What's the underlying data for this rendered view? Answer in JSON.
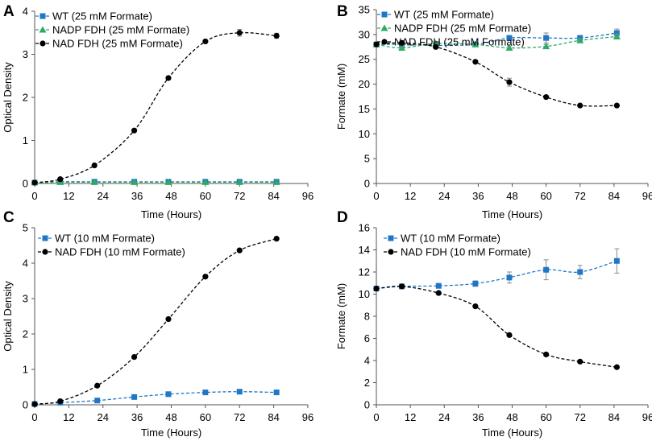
{
  "colors": {
    "wt": "#1f77c8",
    "nadp": "#2daa63",
    "nad": "#000000",
    "err": "#8a8a8a",
    "axis": "#555555"
  },
  "chart_data": [
    {
      "panel": "A",
      "type": "line",
      "xlabel": "Time (Hours)",
      "ylabel": "Optical Density",
      "xlim": [
        0,
        96
      ],
      "ylim": [
        0,
        4
      ],
      "xticks": [
        0,
        12,
        24,
        36,
        48,
        60,
        72,
        84,
        96
      ],
      "yticks": [
        0,
        1,
        2,
        3,
        4
      ],
      "legend": "top-left",
      "series": [
        {
          "name": "WT (25 mM Formate)",
          "marker": "square",
          "color": "#1f77c8",
          "x": [
            0,
            9,
            21,
            35,
            47,
            60,
            72,
            85
          ],
          "y": [
            0.02,
            0.04,
            0.04,
            0.04,
            0.04,
            0.04,
            0.04,
            0.04
          ],
          "err": [
            0,
            0,
            0,
            0,
            0,
            0,
            0,
            0
          ]
        },
        {
          "name": "NADP FDH (25 mM Formate)",
          "marker": "triangle",
          "color": "#2daa63",
          "x": [
            0,
            9,
            21,
            35,
            47,
            60,
            72,
            85
          ],
          "y": [
            0.02,
            0.03,
            0.03,
            0.03,
            0.03,
            0.03,
            0.03,
            0.03
          ],
          "err": [
            0,
            0,
            0,
            0,
            0,
            0,
            0,
            0
          ]
        },
        {
          "name": "NAD FDH (25 mM Formate)",
          "marker": "circle",
          "color": "#000000",
          "x": [
            0,
            9,
            21,
            35,
            47,
            60,
            72,
            85
          ],
          "y": [
            0.02,
            0.1,
            0.42,
            1.23,
            2.45,
            3.3,
            3.5,
            3.43
          ],
          "err": [
            0,
            0,
            0,
            0,
            0,
            0,
            0.08,
            0.06
          ]
        }
      ]
    },
    {
      "panel": "B",
      "type": "line",
      "xlabel": "Time (Hours)",
      "ylabel": "Formate (mM)",
      "xlim": [
        0,
        96
      ],
      "ylim": [
        0,
        35
      ],
      "xticks": [
        0,
        12,
        24,
        36,
        48,
        60,
        72,
        84,
        96
      ],
      "yticks": [
        0,
        5,
        10,
        15,
        20,
        25,
        30,
        35
      ],
      "legend": "top-left",
      "series": [
        {
          "name": "WT (25 mM Formate)",
          "marker": "square",
          "color": "#1f77c8",
          "x": [
            0,
            9,
            21,
            35,
            47,
            60,
            72,
            85
          ],
          "y": [
            28.0,
            28.0,
            27.8,
            28.0,
            29.3,
            29.3,
            29.3,
            30.3
          ],
          "err": [
            0,
            0,
            0,
            0,
            0.5,
            1.0,
            0.5,
            0.8
          ]
        },
        {
          "name": "NADP FDH (25 mM Formate)",
          "marker": "triangle",
          "color": "#2daa63",
          "x": [
            0,
            9,
            21,
            35,
            47,
            60,
            72,
            85
          ],
          "y": [
            28.0,
            27.3,
            28.2,
            28.0,
            27.3,
            27.6,
            28.8,
            29.6
          ],
          "err": [
            0,
            0.4,
            0.3,
            0,
            0.4,
            0.4,
            0.4,
            0.5
          ]
        },
        {
          "name": "NAD FDH (25 mM Formate)",
          "marker": "circle",
          "color": "#000000",
          "x": [
            0,
            9,
            21,
            35,
            47,
            60,
            72,
            85
          ],
          "y": [
            28.0,
            28.3,
            27.5,
            24.5,
            20.4,
            17.4,
            15.7,
            15.7
          ],
          "err": [
            0,
            0.5,
            0.4,
            0,
            0.8,
            0,
            0,
            0
          ]
        }
      ]
    },
    {
      "panel": "C",
      "type": "line",
      "xlabel": "Time (Hours)",
      "ylabel": "Optical Density",
      "xlim": [
        0,
        96
      ],
      "ylim": [
        0,
        5
      ],
      "xticks": [
        0,
        12,
        24,
        36,
        48,
        60,
        72,
        84,
        96
      ],
      "yticks": [
        0,
        1,
        2,
        3,
        4,
        5
      ],
      "legend": "top-left",
      "series": [
        {
          "name": "WT (10 mM Formate)",
          "marker": "square",
          "color": "#1f77c8",
          "x": [
            0,
            9,
            22,
            35,
            47,
            60,
            72,
            85
          ],
          "y": [
            0.02,
            0.06,
            0.12,
            0.22,
            0.3,
            0.35,
            0.37,
            0.35
          ],
          "err": [
            0,
            0,
            0,
            0,
            0,
            0,
            0,
            0
          ]
        },
        {
          "name": "NAD FDH (10 mM Formate)",
          "marker": "circle",
          "color": "#000000",
          "x": [
            0,
            9,
            22,
            35,
            47,
            60,
            72,
            85
          ],
          "y": [
            0.02,
            0.1,
            0.54,
            1.35,
            2.42,
            3.62,
            4.36,
            4.69
          ],
          "err": [
            0,
            0,
            0,
            0,
            0,
            0,
            0,
            0
          ]
        }
      ]
    },
    {
      "panel": "D",
      "type": "line",
      "xlabel": "Time (Hours)",
      "ylabel": "Formate (mM)",
      "xlim": [
        0,
        96
      ],
      "ylim": [
        0,
        16
      ],
      "xticks": [
        0,
        12,
        24,
        36,
        48,
        60,
        72,
        84,
        96
      ],
      "yticks": [
        0,
        2,
        4,
        6,
        8,
        10,
        12,
        14,
        16
      ],
      "legend": "top-left",
      "series": [
        {
          "name": "WT (10 mM Formate)",
          "marker": "square",
          "color": "#1f77c8",
          "x": [
            0,
            9,
            22,
            35,
            47,
            60,
            72,
            85
          ],
          "y": [
            10.5,
            10.7,
            10.75,
            10.95,
            11.5,
            12.2,
            12.0,
            13.0
          ],
          "err": [
            0,
            0,
            0.2,
            0.25,
            0.5,
            0.9,
            0.6,
            1.1
          ]
        },
        {
          "name": "NAD FDH (10 mM Formate)",
          "marker": "circle",
          "color": "#000000",
          "x": [
            0,
            9,
            22,
            35,
            47,
            60,
            72,
            85
          ],
          "y": [
            10.5,
            10.7,
            10.1,
            8.9,
            6.3,
            4.55,
            3.9,
            3.4
          ],
          "err": [
            0,
            0,
            0,
            0,
            0,
            0,
            0,
            0
          ]
        }
      ]
    }
  ]
}
